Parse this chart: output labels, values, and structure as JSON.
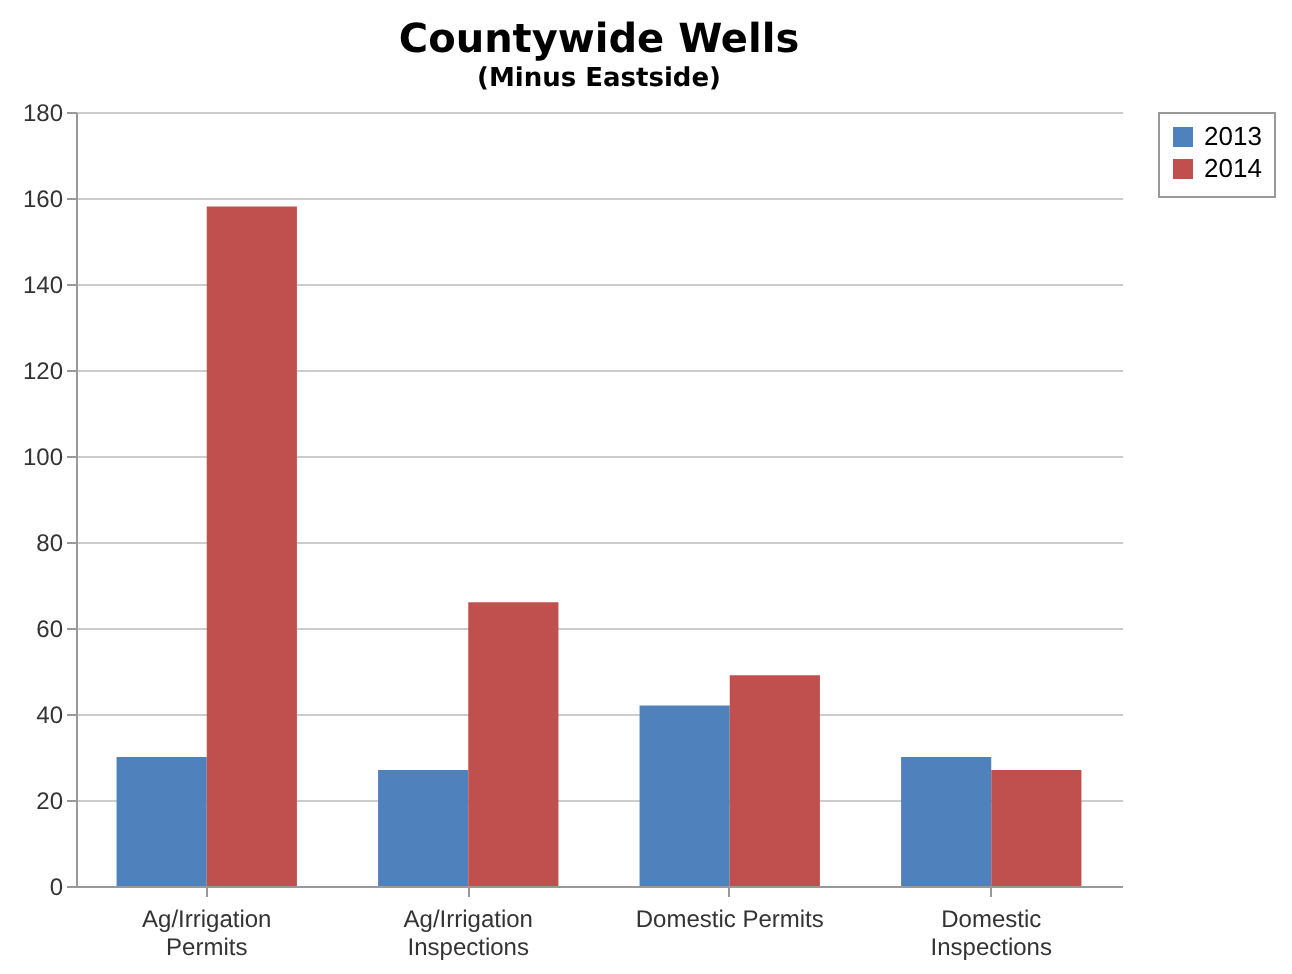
{
  "chart_data": {
    "type": "bar",
    "title": "Countywide Wells",
    "subtitle": "(Minus Eastside)",
    "categories": [
      "Ag/Irrigation Permits",
      "Ag/Irrigation Inspections",
      "Domestic Permits",
      "Domestic Inspections"
    ],
    "series": [
      {
        "name": "2013",
        "color": "#4f81bd",
        "values": [
          30,
          27,
          42,
          30
        ]
      },
      {
        "name": "2014",
        "color": "#c0504d",
        "values": [
          158,
          66,
          49,
          27
        ]
      }
    ],
    "ylim": [
      0,
      180
    ],
    "yticks": [
      0,
      20,
      40,
      60,
      80,
      100,
      120,
      140,
      160,
      180
    ],
    "grid": "y",
    "legend": "right"
  }
}
